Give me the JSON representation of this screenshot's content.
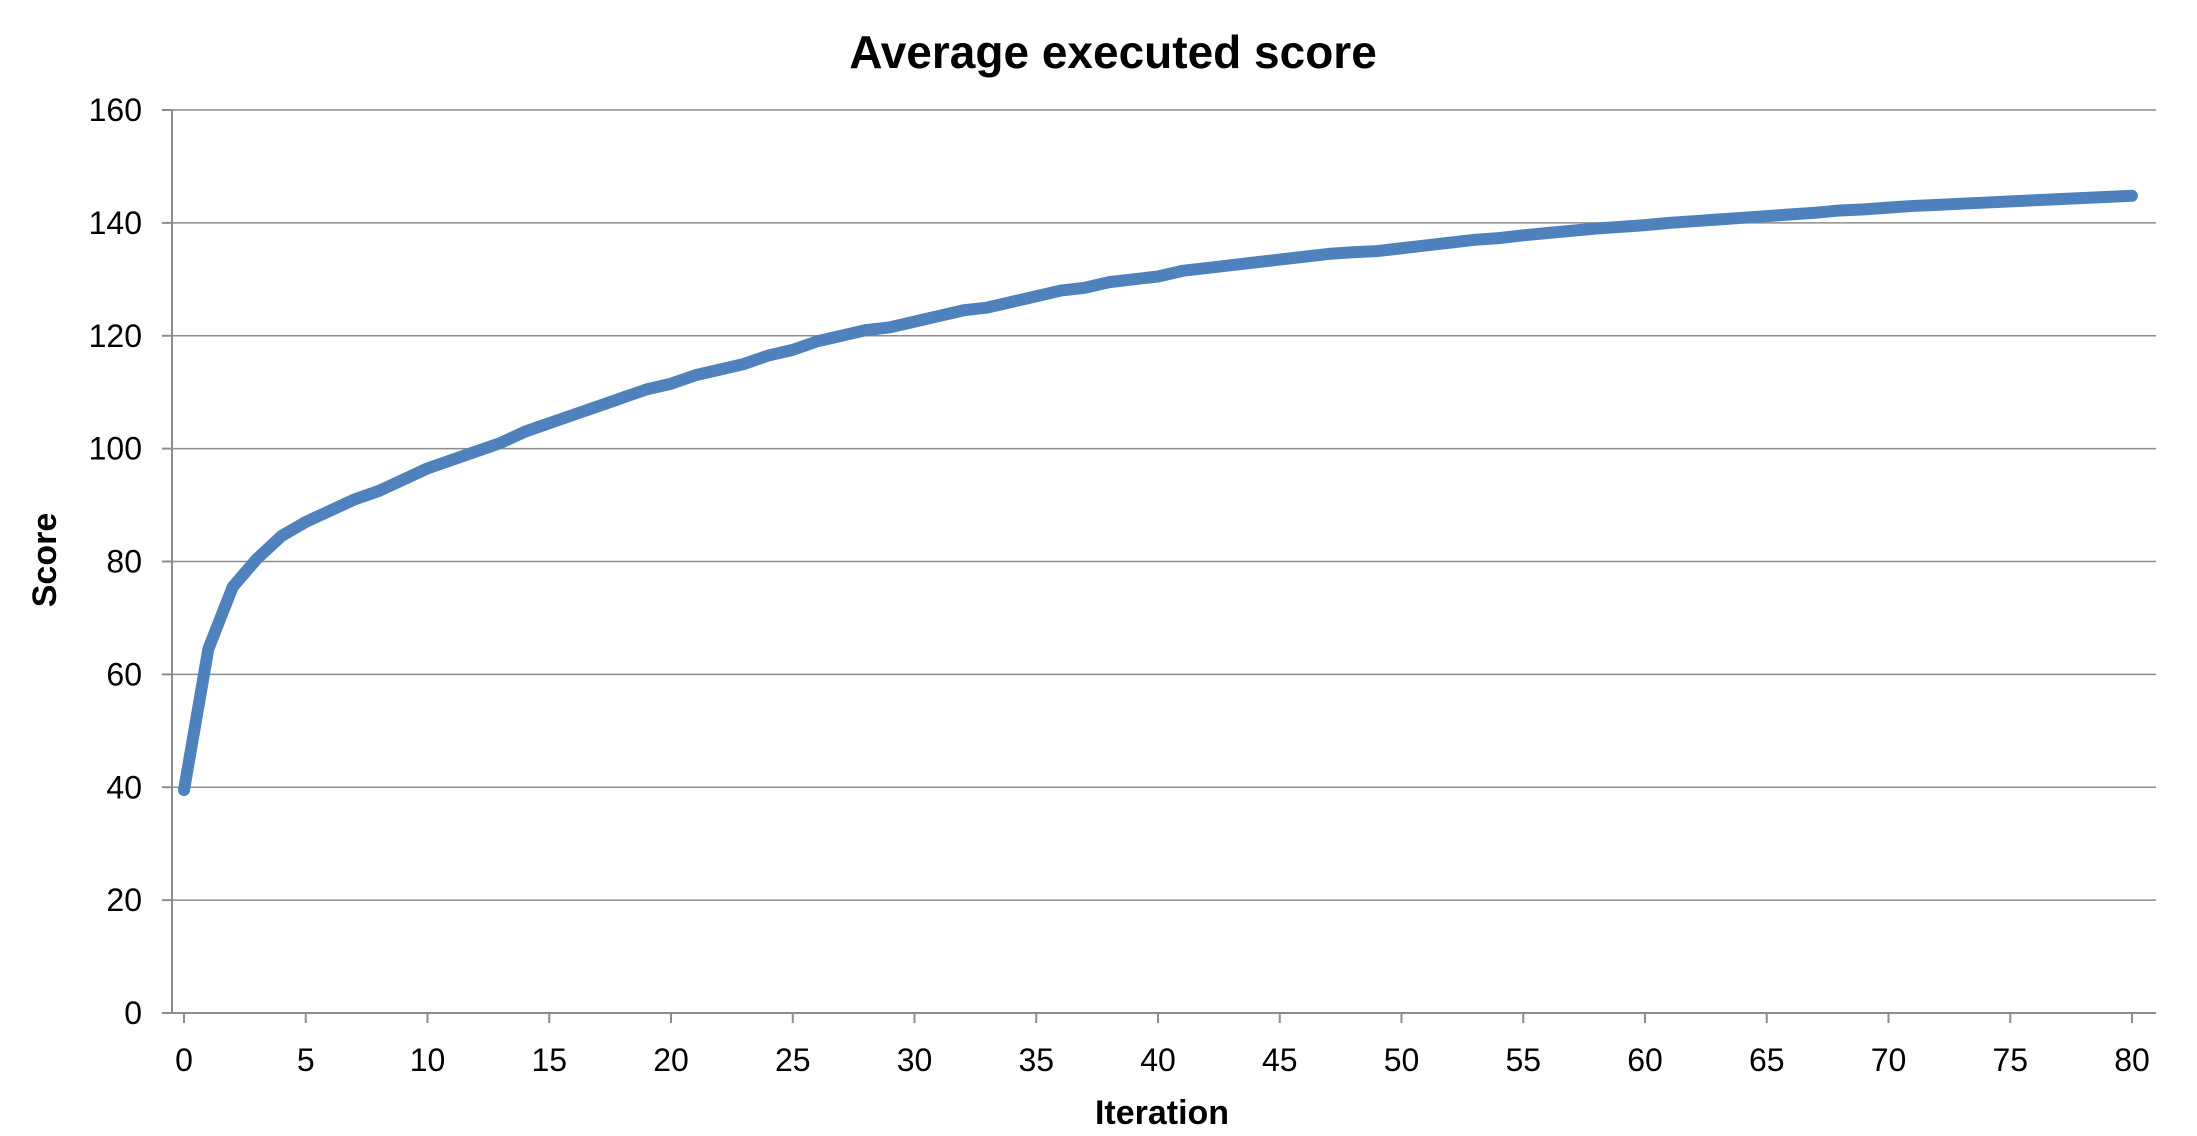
{
  "chart_data": {
    "type": "line",
    "title": "Average executed score",
    "xlabel": "Iteration",
    "ylabel": "Score",
    "xlim": [
      0,
      80
    ],
    "ylim": [
      0,
      160
    ],
    "x_ticks": [
      "0",
      "5",
      "10",
      "15",
      "20",
      "25",
      "30",
      "35",
      "40",
      "45",
      "50",
      "55",
      "60",
      "65",
      "70",
      "75",
      "80"
    ],
    "y_ticks": [
      "0",
      "20",
      "40",
      "60",
      "80",
      "100",
      "120",
      "140",
      "160"
    ],
    "grid": true,
    "legend": "none",
    "series_color": "#4f81bd",
    "series": [
      {
        "x": [
          0,
          1,
          2,
          3,
          4,
          5,
          6,
          7,
          8,
          9,
          10,
          11,
          12,
          13,
          14,
          15,
          16,
          17,
          18,
          19,
          20,
          21,
          22,
          23,
          24,
          25,
          26,
          27,
          28,
          29,
          30,
          31,
          32,
          33,
          34,
          35,
          36,
          37,
          38,
          39,
          40,
          41,
          42,
          43,
          44,
          45,
          46,
          47,
          48,
          49,
          50,
          51,
          52,
          53,
          54,
          55,
          56,
          57,
          58,
          59,
          60,
          61,
          62,
          63,
          64,
          65,
          66,
          67,
          68,
          69,
          70,
          71,
          72,
          73,
          74,
          75,
          76,
          77,
          78,
          79,
          80
        ],
        "values": [
          39.5,
          64.5,
          75.5,
          80.5,
          84.5,
          87.0,
          89.0,
          91.0,
          92.5,
          94.5,
          96.5,
          98.0,
          99.5,
          101.0,
          103.0,
          104.5,
          106.0,
          107.5,
          109.0,
          110.5,
          111.5,
          113.0,
          114.0,
          115.0,
          116.5,
          117.5,
          119.0,
          120.0,
          121.0,
          121.5,
          122.5,
          123.5,
          124.5,
          125.0,
          126.0,
          127.0,
          128.0,
          128.5,
          129.5,
          130.0,
          130.5,
          131.5,
          132.0,
          132.5,
          133.0,
          133.5,
          134.0,
          134.5,
          134.8,
          135.0,
          135.5,
          136.0,
          136.5,
          137.0,
          137.3,
          137.8,
          138.2,
          138.6,
          139.0,
          139.3,
          139.6,
          140.0,
          140.3,
          140.6,
          140.9,
          141.2,
          141.5,
          141.8,
          142.2,
          142.4,
          142.7,
          143.0,
          143.2,
          143.4,
          143.6,
          143.8,
          144.0,
          144.2,
          144.4,
          144.6,
          144.8
        ]
      }
    ]
  }
}
